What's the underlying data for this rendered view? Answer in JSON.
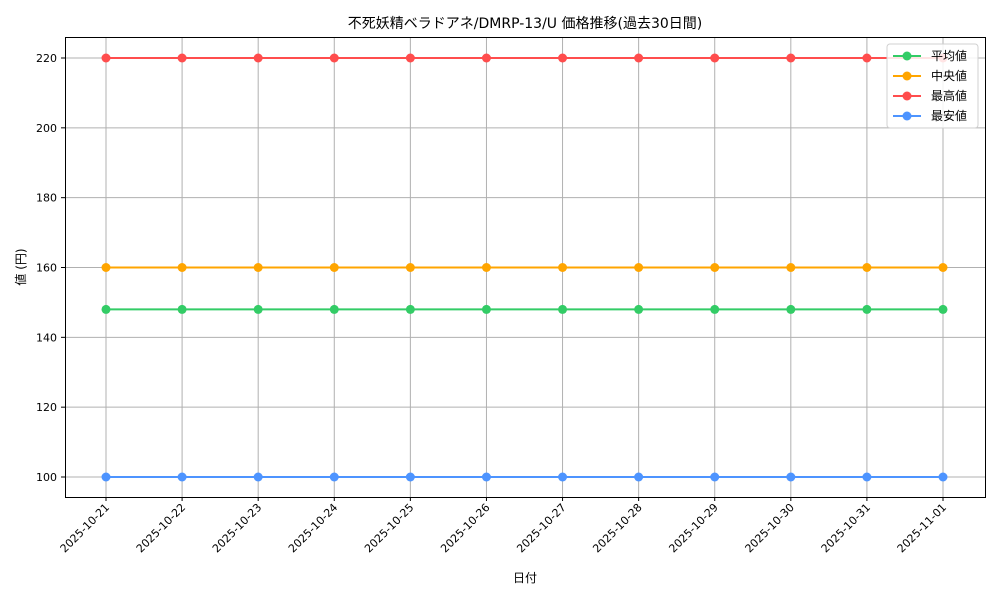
{
  "chart_data": {
    "type": "line",
    "title": "不死妖精ベラドアネ/DMRP-13/U 価格推移(過去30日間)",
    "xlabel": "日付",
    "ylabel": "値 (円)",
    "x": [
      "2025-10-21",
      "2025-10-22",
      "2025-10-23",
      "2025-10-24",
      "2025-10-25",
      "2025-10-26",
      "2025-10-27",
      "2025-10-28",
      "2025-10-29",
      "2025-10-30",
      "2025-10-31",
      "2025-11-01"
    ],
    "series": [
      {
        "name": "平均値",
        "color": "#33cc66",
        "values": [
          148,
          148,
          148,
          148,
          148,
          148,
          148,
          148,
          148,
          148,
          148,
          148
        ]
      },
      {
        "name": "中央値",
        "color": "#ffa500",
        "values": [
          160,
          160,
          160,
          160,
          160,
          160,
          160,
          160,
          160,
          160,
          160,
          160
        ]
      },
      {
        "name": "最高値",
        "color": "#ff4d4d",
        "values": [
          220,
          220,
          220,
          220,
          220,
          220,
          220,
          220,
          220,
          220,
          220,
          220
        ]
      },
      {
        "name": "最安値",
        "color": "#4d94ff",
        "values": [
          100,
          100,
          100,
          100,
          100,
          100,
          100,
          100,
          100,
          100,
          100,
          100
        ]
      }
    ],
    "yticks": [
      100,
      120,
      140,
      160,
      180,
      200,
      220
    ],
    "ylim": [
      94,
      226
    ],
    "grid": true,
    "legend_position": "upper right"
  }
}
